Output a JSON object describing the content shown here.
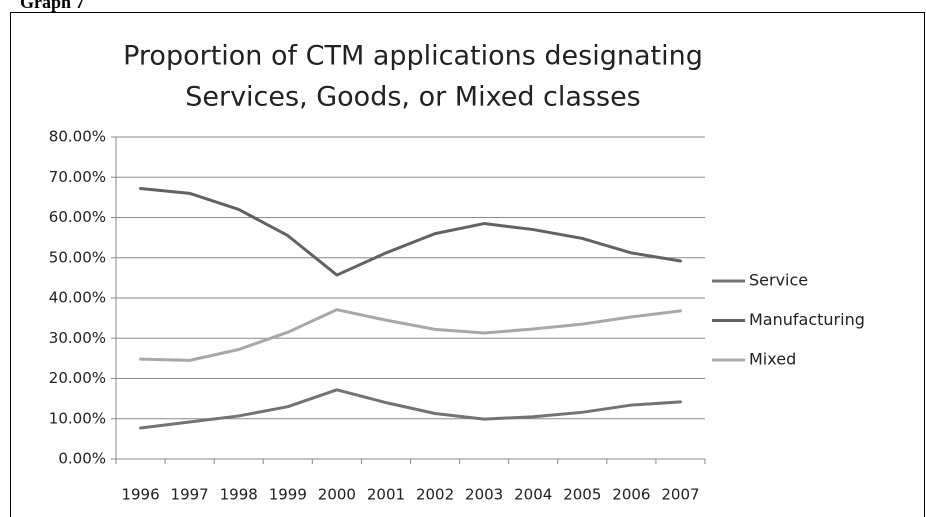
{
  "caption": "Graph 7",
  "chart_data": {
    "type": "line",
    "title": [
      "Proportion of CTM applications designating",
      "Services, Goods, or Mixed classes"
    ],
    "categories": [
      "1996",
      "1997",
      "1998",
      "1999",
      "2000",
      "2001",
      "2002",
      "2003",
      "2004",
      "2005",
      "2006",
      "2007"
    ],
    "series": [
      {
        "name": "Service",
        "color": "#737373",
        "values": [
          7.7,
          9.2,
          10.7,
          13.0,
          17.2,
          14.0,
          11.3,
          9.9,
          10.5,
          11.6,
          13.4,
          14.2
        ]
      },
      {
        "name": "Manufacturing",
        "color": "#626262",
        "values": [
          67.2,
          66.0,
          62.0,
          55.5,
          45.7,
          51.2,
          56.0,
          58.5,
          57.0,
          54.8,
          51.2,
          49.2
        ]
      },
      {
        "name": "Mixed",
        "color": "#a8a8a8",
        "values": [
          24.8,
          24.5,
          27.2,
          31.5,
          37.1,
          34.5,
          32.2,
          31.3,
          32.3,
          33.5,
          35.3,
          36.8
        ]
      }
    ],
    "ylim": [
      0,
      80
    ],
    "yticks": [
      {
        "value": 0,
        "label": "0.00%"
      },
      {
        "value": 10,
        "label": "10.00%"
      },
      {
        "value": 20,
        "label": "20.00%"
      },
      {
        "value": 30,
        "label": "30.00%"
      },
      {
        "value": 40,
        "label": "40.00%"
      },
      {
        "value": 50,
        "label": "50.00%"
      },
      {
        "value": 60,
        "label": "60.00%"
      },
      {
        "value": 70,
        "label": "70.00%"
      },
      {
        "value": 80,
        "label": "80.00%"
      }
    ],
    "grid": true,
    "legend": "right"
  }
}
